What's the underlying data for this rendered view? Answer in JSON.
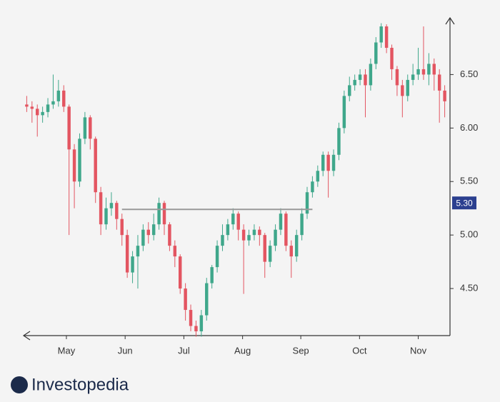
{
  "chart_data": {
    "type": "candlestick",
    "x": [
      0,
      1,
      2,
      3,
      4,
      5,
      6,
      7,
      8,
      9,
      10,
      11,
      12,
      13,
      14,
      15,
      16,
      17,
      18,
      19,
      20,
      21,
      22,
      23,
      24,
      25,
      26,
      27,
      28,
      29,
      30,
      31,
      32,
      33,
      34,
      35,
      36,
      37,
      38,
      39,
      40,
      41,
      42,
      43,
      44,
      45,
      46,
      47,
      48,
      49,
      50,
      51,
      52,
      53,
      54,
      55,
      56,
      57,
      58,
      59,
      60,
      61,
      62,
      63,
      64,
      65,
      66,
      67,
      68,
      69,
      70,
      71,
      72,
      73,
      74,
      75,
      76,
      77,
      78,
      79
    ],
    "open": [
      6.22,
      6.2,
      6.18,
      6.12,
      6.15,
      6.22,
      6.25,
      6.35,
      6.2,
      5.8,
      5.5,
      5.9,
      6.1,
      5.9,
      5.4,
      5.1,
      5.25,
      5.3,
      5.15,
      5.0,
      4.65,
      4.8,
      4.9,
      5.05,
      5.0,
      5.1,
      5.3,
      5.1,
      4.9,
      4.8,
      4.5,
      4.3,
      4.15,
      4.1,
      4.25,
      4.55,
      4.7,
      4.9,
      5.0,
      5.1,
      5.2,
      5.05,
      4.95,
      5.0,
      5.05,
      5.0,
      4.75,
      4.9,
      5.05,
      5.2,
      4.9,
      4.8,
      5.0,
      5.2,
      5.4,
      5.5,
      5.6,
      5.75,
      5.6,
      5.75,
      6.0,
      6.3,
      6.4,
      6.45,
      6.5,
      6.4,
      6.6,
      6.8,
      6.95,
      6.75,
      6.55,
      6.4,
      6.3,
      6.45,
      6.5,
      6.55,
      6.5,
      6.6,
      6.5,
      6.35
    ],
    "high": [
      6.3,
      6.25,
      6.22,
      6.2,
      6.28,
      6.5,
      6.45,
      6.4,
      6.22,
      5.85,
      5.95,
      6.15,
      6.12,
      5.92,
      5.45,
      5.35,
      5.4,
      5.32,
      5.2,
      5.05,
      4.85,
      5.0,
      5.1,
      5.12,
      5.2,
      5.35,
      5.32,
      5.12,
      4.95,
      4.82,
      4.55,
      4.35,
      4.2,
      4.3,
      4.6,
      4.72,
      4.95,
      5.1,
      5.15,
      5.25,
      5.22,
      5.1,
      5.05,
      5.1,
      5.08,
      5.02,
      4.95,
      5.1,
      5.25,
      5.22,
      4.95,
      5.05,
      5.25,
      5.45,
      5.55,
      5.65,
      5.78,
      5.78,
      5.8,
      6.05,
      6.35,
      6.48,
      6.5,
      6.55,
      6.55,
      6.65,
      6.85,
      6.98,
      6.97,
      6.78,
      6.58,
      6.45,
      6.5,
      6.6,
      6.75,
      6.95,
      6.7,
      6.65,
      6.55,
      6.4
    ],
    "low": [
      6.15,
      6.05,
      5.92,
      6.05,
      6.1,
      6.18,
      6.2,
      6.15,
      5.0,
      5.25,
      5.45,
      5.85,
      5.8,
      5.3,
      5.0,
      5.05,
      5.18,
      5.05,
      4.9,
      4.6,
      4.55,
      4.5,
      4.85,
      4.92,
      4.95,
      5.05,
      5.0,
      4.85,
      4.7,
      4.45,
      4.2,
      4.1,
      4.05,
      4.05,
      4.2,
      4.5,
      4.65,
      4.85,
      4.95,
      5.05,
      4.95,
      4.45,
      4.9,
      4.95,
      4.9,
      4.6,
      4.7,
      4.85,
      5.0,
      4.85,
      4.6,
      4.75,
      4.95,
      5.15,
      5.35,
      5.45,
      5.55,
      5.35,
      5.55,
      5.7,
      5.95,
      6.25,
      6.35,
      6.4,
      6.1,
      6.35,
      6.55,
      6.75,
      6.7,
      6.45,
      6.3,
      6.1,
      6.25,
      6.4,
      6.45,
      6.45,
      6.4,
      6.35,
      6.05,
      6.1
    ],
    "close": [
      6.2,
      6.18,
      6.12,
      6.15,
      6.22,
      6.25,
      6.35,
      6.2,
      5.8,
      5.5,
      5.9,
      6.1,
      5.9,
      5.4,
      5.1,
      5.25,
      5.3,
      5.15,
      5.0,
      4.65,
      4.8,
      4.9,
      5.05,
      5.0,
      5.1,
      5.3,
      5.1,
      4.9,
      4.8,
      4.5,
      4.3,
      4.15,
      4.1,
      4.25,
      4.55,
      4.7,
      4.9,
      5.0,
      5.1,
      5.2,
      5.05,
      4.95,
      5.0,
      5.05,
      5.0,
      4.75,
      4.9,
      5.05,
      5.2,
      4.9,
      4.8,
      5.0,
      5.2,
      5.4,
      5.5,
      5.6,
      5.75,
      5.6,
      5.75,
      6.0,
      6.3,
      6.4,
      6.45,
      6.5,
      6.4,
      6.6,
      6.8,
      6.95,
      6.75,
      6.55,
      6.4,
      6.3,
      6.45,
      6.5,
      6.55,
      6.5,
      6.6,
      6.5,
      6.35,
      6.25
    ],
    "up_color": "#3fa78b",
    "down_color": "#e35561",
    "xlim": [
      -1,
      80
    ],
    "xticks": [
      {
        "value": 7.5,
        "label": "May"
      },
      {
        "value": 18.6,
        "label": "Jun"
      },
      {
        "value": 29.7,
        "label": "Jul"
      },
      {
        "value": 40.8,
        "label": "Aug"
      },
      {
        "value": 51.8,
        "label": "Sep"
      },
      {
        "value": 62.9,
        "label": "Oct"
      },
      {
        "value": 74,
        "label": "Nov"
      }
    ],
    "ylim": [
      4.06,
      7.03
    ],
    "yticks": [
      {
        "value": 4.5,
        "label": "4.50"
      },
      {
        "value": 5,
        "label": "5.00"
      },
      {
        "value": 5.5,
        "label": "5.50"
      },
      {
        "value": 6,
        "label": "6.00"
      },
      {
        "value": 6.5,
        "label": "6.50"
      }
    ],
    "resistance": {
      "value": 5.24,
      "x": [
        18,
        54
      ]
    },
    "price_marker": {
      "value": 5.3,
      "label": "5.30"
    }
  },
  "brand": "Investopedia"
}
